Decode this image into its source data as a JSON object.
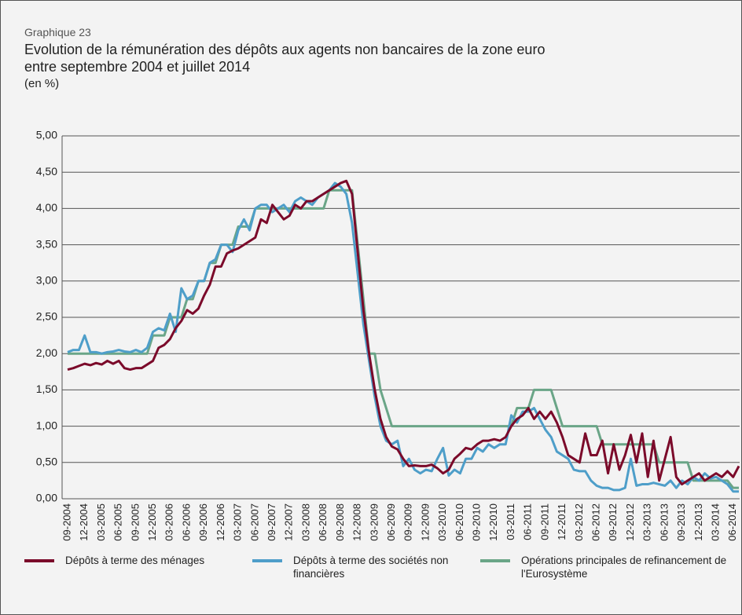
{
  "chart_data": {
    "type": "line",
    "label": "Graphique 23",
    "title": "Evolution de la rémunération des dépôts aux agents non bancaires de la zone euro",
    "subtitle": "entre septembre 2004 et juillet 2014",
    "unit": "(en %)",
    "categories": [
      "09-2004",
      null,
      null,
      "12-2004",
      null,
      null,
      "03-2005",
      null,
      null,
      "06-2005",
      null,
      null,
      "09-2005",
      null,
      null,
      "12-2005",
      null,
      null,
      "03-2006",
      null,
      null,
      "06-2006",
      null,
      null,
      "09-2006",
      null,
      null,
      "12-2006",
      null,
      null,
      "03-2007",
      null,
      null,
      "06-2007",
      null,
      null,
      "09-2007",
      null,
      null,
      "12-2007",
      null,
      null,
      "03-2008",
      null,
      null,
      "06-2008",
      null,
      null,
      "09-2008",
      null,
      null,
      "12-2008",
      null,
      null,
      "03-2009",
      null,
      null,
      "06-2009",
      null,
      null,
      "09-2009",
      null,
      null,
      "12-2009",
      null,
      null,
      "03-2010",
      null,
      null,
      "06-2010",
      null,
      null,
      "09-2010",
      null,
      null,
      "12-2010",
      null,
      null,
      "03-2011",
      null,
      null,
      "06-2011",
      null,
      null,
      "09-2011",
      null,
      null,
      "12-2011",
      null,
      null,
      "03-2012",
      null,
      null,
      "06-2012",
      null,
      null,
      "09-2012",
      null,
      null,
      "12-2012",
      null,
      null,
      "03-2013",
      null,
      null,
      "06-2013",
      null,
      null,
      "09-2013",
      null,
      null,
      "12-2013",
      null,
      null,
      "03-2014",
      null,
      null,
      "06-2014",
      null
    ],
    "series": [
      {
        "name": "Dépôts à terme des ménages",
        "color": "#7b0a2a",
        "values": [
          1.78,
          1.8,
          1.83,
          1.86,
          1.84,
          1.87,
          1.85,
          1.9,
          1.86,
          1.9,
          1.8,
          1.78,
          1.8,
          1.8,
          1.85,
          1.9,
          2.08,
          2.12,
          2.2,
          2.35,
          2.45,
          2.6,
          2.55,
          2.62,
          2.8,
          2.95,
          3.2,
          3.2,
          3.38,
          3.42,
          3.45,
          3.5,
          3.55,
          3.6,
          3.85,
          3.8,
          4.05,
          3.95,
          3.85,
          3.9,
          4.05,
          4.0,
          4.1,
          4.1,
          4.15,
          4.2,
          4.25,
          4.3,
          4.35,
          4.38,
          4.2,
          3.4,
          2.6,
          2.0,
          1.5,
          1.1,
          0.85,
          0.72,
          0.68,
          0.55,
          0.45,
          0.46,
          0.45,
          0.45,
          0.47,
          0.42,
          0.35,
          0.4,
          0.55,
          0.62,
          0.7,
          0.68,
          0.75,
          0.8,
          0.8,
          0.82,
          0.8,
          0.85,
          1.0,
          1.1,
          1.15,
          1.25,
          1.1,
          1.2,
          1.1,
          1.2,
          1.05,
          0.85,
          0.6,
          0.55,
          0.5,
          0.9,
          0.6,
          0.6,
          0.8,
          0.35,
          0.75,
          0.4,
          0.6,
          0.88,
          0.5,
          0.9,
          0.3,
          0.8,
          0.25,
          0.55,
          0.85,
          0.3,
          0.2,
          0.25,
          0.3,
          0.35,
          0.25,
          0.3,
          0.35,
          0.3,
          0.38,
          0.3,
          0.45
        ]
      },
      {
        "name": "Dépôts à terme des sociétés non financières",
        "color": "#4e9ec9",
        "values": [
          2.02,
          2.05,
          2.05,
          2.25,
          2.02,
          2.02,
          2.0,
          2.02,
          2.03,
          2.05,
          2.03,
          2.02,
          2.05,
          2.02,
          2.08,
          2.3,
          2.35,
          2.32,
          2.55,
          2.3,
          2.9,
          2.75,
          2.8,
          3.0,
          3.0,
          3.25,
          3.3,
          3.5,
          3.5,
          3.4,
          3.7,
          3.85,
          3.7,
          4.0,
          4.05,
          4.05,
          3.95,
          4.0,
          4.05,
          3.95,
          4.1,
          4.15,
          4.1,
          4.05,
          4.15,
          4.2,
          4.25,
          4.35,
          4.3,
          4.2,
          3.8,
          3.1,
          2.4,
          1.9,
          1.4,
          1.0,
          0.8,
          0.75,
          0.8,
          0.45,
          0.55,
          0.4,
          0.35,
          0.4,
          0.38,
          0.55,
          0.7,
          0.32,
          0.4,
          0.35,
          0.55,
          0.55,
          0.7,
          0.65,
          0.75,
          0.7,
          0.75,
          0.75,
          1.15,
          1.05,
          1.2,
          1.2,
          1.25,
          1.1,
          0.95,
          0.85,
          0.65,
          0.6,
          0.55,
          0.4,
          0.38,
          0.38,
          0.25,
          0.18,
          0.15,
          0.15,
          0.12,
          0.12,
          0.15,
          0.55,
          0.18,
          0.2,
          0.2,
          0.22,
          0.2,
          0.18,
          0.25,
          0.15,
          0.25,
          0.2,
          0.3,
          0.25,
          0.35,
          0.28,
          0.3,
          0.25,
          0.2,
          0.1,
          0.1
        ]
      },
      {
        "name": "Opérations principales de refinancement de l'Eurosystème",
        "color": "#6aa587",
        "values": [
          2,
          2,
          2,
          2,
          2,
          2,
          2,
          2,
          2,
          2,
          2,
          2,
          2,
          2,
          2,
          2.25,
          2.25,
          2.25,
          2.5,
          2.5,
          2.5,
          2.75,
          2.75,
          3,
          3,
          3.25,
          3.25,
          3.5,
          3.5,
          3.5,
          3.75,
          3.75,
          3.75,
          4,
          4,
          4,
          4,
          4,
          4,
          4,
          4,
          4,
          4,
          4,
          4,
          4,
          4.25,
          4.25,
          4.25,
          4.25,
          4.25,
          3.5,
          2.75,
          2,
          2,
          1.5,
          1.25,
          1,
          1,
          1,
          1,
          1,
          1,
          1,
          1,
          1,
          1,
          1,
          1,
          1,
          1,
          1,
          1,
          1,
          1,
          1,
          1,
          1,
          1,
          1.25,
          1.25,
          1.25,
          1.5,
          1.5,
          1.5,
          1.5,
          1.25,
          1,
          1,
          1,
          1,
          1,
          1,
          1,
          0.75,
          0.75,
          0.75,
          0.75,
          0.75,
          0.75,
          0.75,
          0.75,
          0.75,
          0.75,
          0.5,
          0.5,
          0.5,
          0.5,
          0.5,
          0.5,
          0.25,
          0.25,
          0.25,
          0.25,
          0.25,
          0.25,
          0.25,
          0.15,
          0.15
        ]
      }
    ],
    "ylim": [
      0,
      5
    ],
    "yticks": [
      {
        "value": 0,
        "label": "0,00"
      },
      {
        "value": 0.5,
        "label": "0,50"
      },
      {
        "value": 1,
        "label": "1,00"
      },
      {
        "value": 1.5,
        "label": "1,50"
      },
      {
        "value": 2,
        "label": "2,00"
      },
      {
        "value": 2.5,
        "label": "2,50"
      },
      {
        "value": 3,
        "label": "3,00"
      },
      {
        "value": 3.5,
        "label": "3,50"
      },
      {
        "value": 4,
        "label": "4,00"
      },
      {
        "value": 4.5,
        "label": "4,50"
      },
      {
        "value": 5,
        "label": "5,00"
      }
    ],
    "grid": true,
    "legend": "bottom"
  }
}
